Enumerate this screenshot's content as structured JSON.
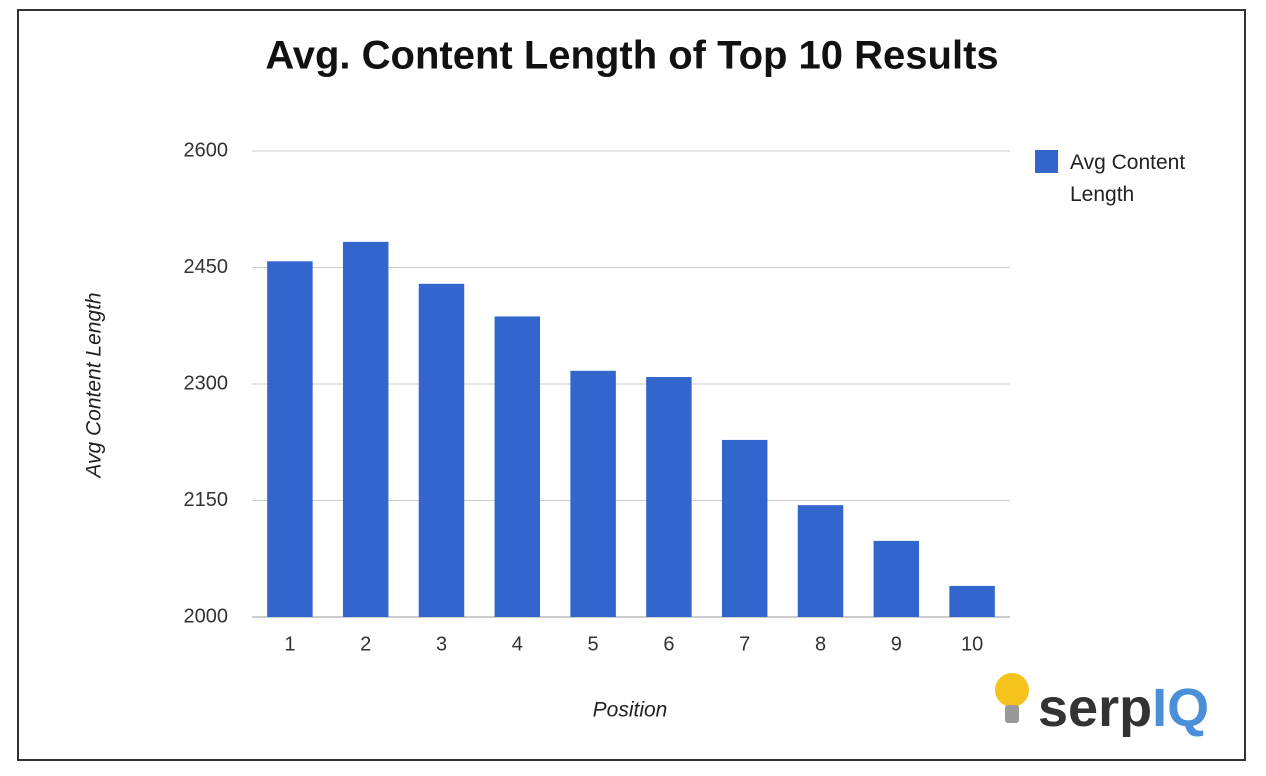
{
  "chart_data": {
    "type": "bar",
    "title": "Avg. Content Length of Top 10 Results",
    "x_label": "Position",
    "y_label": "Avg Content Length",
    "categories": [
      "1",
      "2",
      "3",
      "4",
      "5",
      "6",
      "7",
      "8",
      "9",
      "10"
    ],
    "series": [
      {
        "name": "Avg Content Length",
        "color": "#3366cc",
        "values": [
          2458,
          2483,
          2429,
          2387,
          2317,
          2309,
          2228,
          2144,
          2098,
          2040
        ]
      }
    ],
    "ylim": [
      2000,
      2600
    ],
    "yticks": [
      2000,
      2150,
      2300,
      2450,
      2600
    ],
    "grid": true,
    "legend": "right"
  },
  "logo": {
    "text": "serp",
    "highlight": "IQ"
  }
}
